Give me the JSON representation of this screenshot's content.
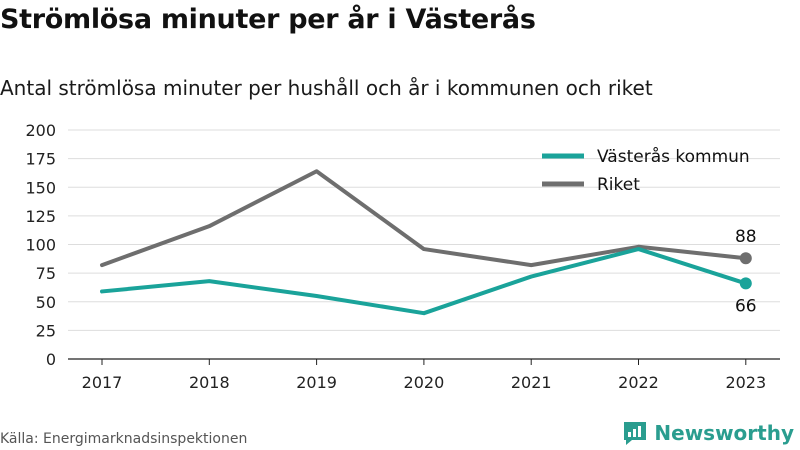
{
  "title": "Strömlösa minuter per år i Västerås",
  "subtitle": "Antal strömlösa minuter per hushåll och år i kommunen och riket",
  "source": "Källa: Energimarknadsinspektionen",
  "brand": {
    "name": "Newsworthy",
    "icon": "newsworthy-logo-icon",
    "color": "#2a9d8f"
  },
  "chart_data": {
    "type": "line",
    "title": "Strömlösa minuter per år i Västerås",
    "subtitle": "Antal strömlösa minuter per hushåll och år i kommunen och riket",
    "xlabel": "",
    "ylabel": "",
    "x": [
      "2017",
      "2018",
      "2019",
      "2020",
      "2021",
      "2022",
      "2023"
    ],
    "ylim": [
      0,
      200
    ],
    "yticks": [
      "0",
      "25",
      "50",
      "75",
      "100",
      "125",
      "150",
      "175",
      "200"
    ],
    "grid": true,
    "legend": "top-right",
    "series": [
      {
        "name": "Västerås kommun",
        "color": "#1aa39a",
        "values": [
          59,
          68,
          55,
          40,
          72,
          96,
          66
        ],
        "end_label": "66"
      },
      {
        "name": "Riket",
        "color": "#6e6e6e",
        "values": [
          82,
          116,
          164,
          96,
          82,
          98,
          88
        ],
        "end_label": "88"
      }
    ]
  }
}
